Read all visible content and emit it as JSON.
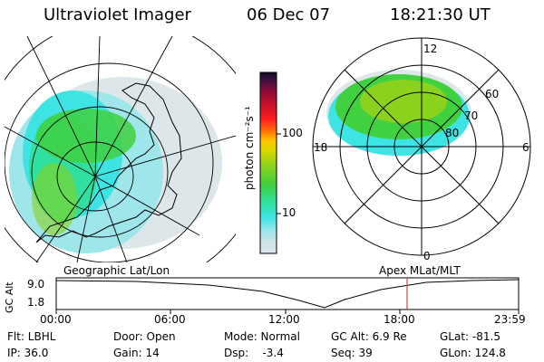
{
  "header": {
    "title": "Ultraviolet Imager",
    "date": "06 Dec 07",
    "time": "18:21:30 UT"
  },
  "colors": {
    "background": "#ffffff",
    "ink": "#000000",
    "marker": "#d0454c",
    "colorbar": [
      "#dfe6ea",
      "#cfe3e6",
      "#9fe6ea",
      "#3ee4e4",
      "#2fe0a0",
      "#40d040",
      "#8ad21e",
      "#d2d800",
      "#ffc800",
      "#ff7a00",
      "#ff2020",
      "#c8102a",
      "#8a0a38",
      "#3a1040",
      "#120a20"
    ]
  },
  "colorbar": {
    "unit_label": "photon cm⁻²s⁻¹",
    "ticks": [
      "100",
      "10"
    ],
    "scale": "log"
  },
  "left_map": {
    "caption": "Geographic Lat/Lon"
  },
  "right_map": {
    "caption": "Apex MLat/MLT",
    "lat_labels": [
      "60",
      "70",
      "80"
    ],
    "mlt_labels": [
      "12",
      "18",
      "6",
      "0"
    ]
  },
  "timeline": {
    "axis_label": "GC Alt",
    "y_ticks": [
      "9.0",
      "1.8"
    ],
    "x_ticks": [
      "00:00",
      "06:00",
      "12:00",
      "18:00",
      "23:59"
    ],
    "current_time": "18:21:30"
  },
  "footer": {
    "filter": "Flt: LBHL",
    "ip": "IP: 36.0",
    "door": "Door: Open",
    "gain": "Gain: 14",
    "mode": "Mode: Normal",
    "dsp": "Dsp:    -3.4",
    "gc_alt": "GC Alt: 6.9 Re",
    "seq": "Seq: 39",
    "glat": "GLat: -81.5",
    "glon": "GLon: 124.8"
  }
}
